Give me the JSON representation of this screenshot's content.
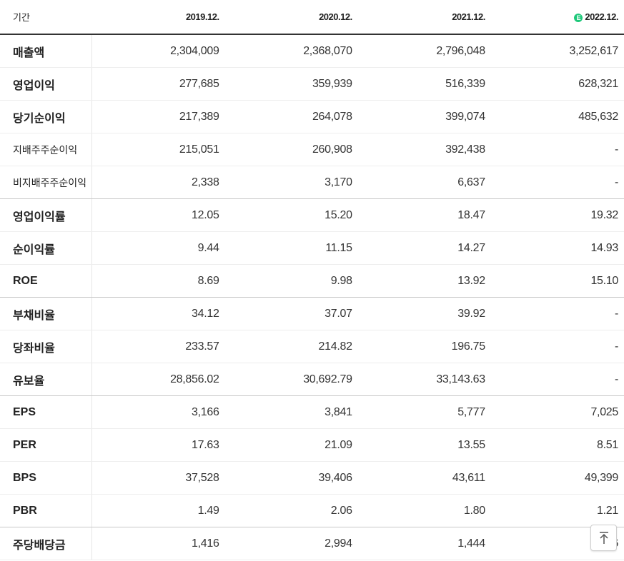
{
  "header": {
    "period_label": "기간",
    "years": [
      "2019.12.",
      "2020.12.",
      "2021.12.",
      "2022.12."
    ],
    "estimate_badge": "E"
  },
  "rows": [
    {
      "label": "매출액",
      "values": [
        "2,304,009",
        "2,368,070",
        "2,796,048",
        "3,252,617"
      ]
    },
    {
      "label": "영업이익",
      "values": [
        "277,685",
        "359,939",
        "516,339",
        "628,321"
      ]
    },
    {
      "label": "당기순이익",
      "values": [
        "217,389",
        "264,078",
        "399,074",
        "485,632"
      ]
    },
    {
      "label": "지배주주순이익",
      "values": [
        "215,051",
        "260,908",
        "392,438",
        "-"
      ]
    },
    {
      "label": "비지배주주순이익",
      "values": [
        "2,338",
        "3,170",
        "6,637",
        "-"
      ]
    },
    {
      "label": "영업이익률",
      "values": [
        "12.05",
        "15.20",
        "18.47",
        "19.32"
      ]
    },
    {
      "label": "순이익률",
      "values": [
        "9.44",
        "11.15",
        "14.27",
        "14.93"
      ]
    },
    {
      "label": "ROE",
      "values": [
        "8.69",
        "9.98",
        "13.92",
        "15.10"
      ]
    },
    {
      "label": "부채비율",
      "values": [
        "34.12",
        "37.07",
        "39.92",
        "-"
      ]
    },
    {
      "label": "당좌비율",
      "values": [
        "233.57",
        "214.82",
        "196.75",
        "-"
      ]
    },
    {
      "label": "유보율",
      "values": [
        "28,856.02",
        "30,692.79",
        "33,143.63",
        "-"
      ]
    },
    {
      "label": "EPS",
      "values": [
        "3,166",
        "3,841",
        "5,777",
        "7,025"
      ]
    },
    {
      "label": "PER",
      "values": [
        "17.63",
        "21.09",
        "13.55",
        "8.51"
      ]
    },
    {
      "label": "BPS",
      "values": [
        "37,528",
        "39,406",
        "43,611",
        "49,399"
      ]
    },
    {
      "label": "PBR",
      "values": [
        "1.49",
        "2.06",
        "1.80",
        "1.21"
      ]
    },
    {
      "label": "주당배당금",
      "values": [
        "1,416",
        "2,994",
        "1,444",
        "1,416"
      ]
    }
  ]
}
